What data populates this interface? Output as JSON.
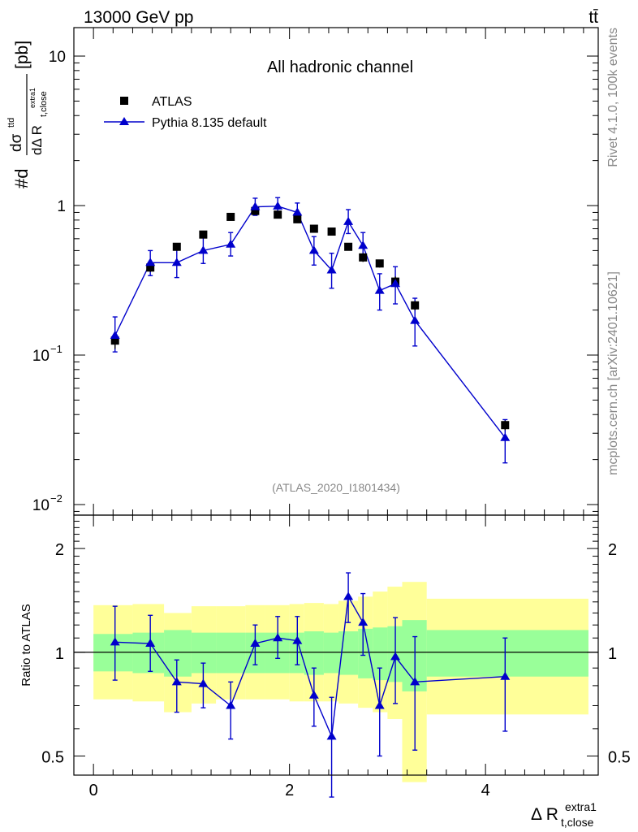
{
  "header": {
    "left": "13000 GeV pp",
    "right": "tt̄"
  },
  "side_labels": {
    "rivet": "Rivet 4.1.0,  100k events",
    "mcplots": "mcplots.cern.ch [arXiv:2401.10621]"
  },
  "colors": {
    "data": "#000000",
    "mc": "#0000cc",
    "band_inner": "#99ff99",
    "band_outer": "#ffff99"
  },
  "chart_data": [
    {
      "type": "scatter",
      "title": "All hadronic channel",
      "analysis_tag": "(ATLAS_2020_I1801434)",
      "ylabel": {
        "prefix": "#d",
        "numerator": "dσ",
        "numerator_sup": "ttd",
        "denominator": "dΔ R",
        "denominator_sub": "t,close",
        "denominator_sup": "extra1",
        "unit": "[pb]"
      },
      "yscale": "log",
      "xlim": [
        -0.2,
        5.15
      ],
      "ylim": [
        0.0085,
        15.5
      ],
      "yticks": [
        {
          "value": 0.01,
          "base": "10",
          "exp": "−2"
        },
        {
          "value": 0.1,
          "base": "10",
          "exp": "−1"
        },
        {
          "value": 1,
          "label": "1"
        },
        {
          "value": 10,
          "label": "10"
        }
      ],
      "legend": {
        "position": "top-left",
        "entries": [
          {
            "label": "ATLAS",
            "marker": "square"
          },
          {
            "label": "Pythia 8.135 default",
            "marker": "triangle"
          }
        ]
      },
      "series": [
        {
          "name": "ATLAS",
          "x": [
            0.22,
            0.58,
            0.85,
            1.12,
            1.4,
            1.65,
            1.88,
            2.08,
            2.25,
            2.43,
            2.6,
            2.75,
            2.92,
            3.08,
            3.28,
            4.2
          ],
          "y": [
            0.125,
            0.385,
            0.53,
            0.64,
            0.84,
            0.92,
            0.87,
            0.81,
            0.7,
            0.67,
            0.53,
            0.45,
            0.41,
            0.31,
            0.215,
            0.034
          ],
          "yerr": [
            0.015,
            0.025,
            0.022,
            0.025,
            0.03,
            0.04,
            0.035,
            0.035,
            0.03,
            0.03,
            0.025,
            0.03,
            0.025,
            0.025,
            0.015,
            0.0025
          ]
        },
        {
          "name": "Pythia 8.135 default",
          "x": [
            0.22,
            0.58,
            0.85,
            1.12,
            1.4,
            1.65,
            1.88,
            2.08,
            2.25,
            2.43,
            2.6,
            2.75,
            2.92,
            3.08,
            3.28,
            4.2
          ],
          "y": [
            0.135,
            0.415,
            0.415,
            0.5,
            0.55,
            0.98,
            0.99,
            0.9,
            0.5,
            0.37,
            0.78,
            0.54,
            0.27,
            0.3,
            0.17,
            0.028
          ],
          "ylo": [
            0.105,
            0.34,
            0.33,
            0.41,
            0.46,
            0.86,
            0.87,
            0.78,
            0.4,
            0.28,
            0.65,
            0.44,
            0.2,
            0.22,
            0.115,
            0.019
          ],
          "yhi": [
            0.18,
            0.5,
            0.52,
            0.61,
            0.66,
            1.12,
            1.13,
            1.04,
            0.62,
            0.48,
            0.94,
            0.66,
            0.35,
            0.39,
            0.24,
            0.037
          ]
        }
      ]
    },
    {
      "type": "scatter",
      "ylabel": "Ratio to ATLAS",
      "xlabel": {
        "main": "Δ R",
        "sub": "t,close",
        "sup": "extra1"
      },
      "yscale": "log",
      "xlim": [
        -0.2,
        5.15
      ],
      "ylim": [
        0.44,
        2.5
      ],
      "xticks": [
        0,
        2,
        4
      ],
      "yticks": [
        {
          "value": 0.5,
          "label": "0.5"
        },
        {
          "value": 1,
          "label": "1"
        },
        {
          "value": 2,
          "label": "2"
        }
      ],
      "bands": {
        "edges": [
          0.0,
          0.4,
          0.72,
          1.0,
          1.25,
          1.55,
          1.75,
          2.0,
          2.15,
          2.35,
          2.5,
          2.7,
          2.85,
          3.0,
          3.15,
          3.4,
          5.05
        ],
        "inner_lo": [
          0.88,
          0.87,
          0.85,
          0.87,
          0.87,
          0.87,
          0.87,
          0.87,
          0.86,
          0.87,
          0.86,
          0.84,
          0.83,
          0.82,
          0.77,
          0.85
        ],
        "inner_hi": [
          1.13,
          1.14,
          1.16,
          1.14,
          1.14,
          1.14,
          1.14,
          1.14,
          1.15,
          1.14,
          1.15,
          1.17,
          1.18,
          1.19,
          1.24,
          1.16
        ],
        "outer_lo": [
          0.73,
          0.72,
          0.67,
          0.71,
          0.73,
          0.73,
          0.73,
          0.72,
          0.72,
          0.72,
          0.71,
          0.69,
          0.67,
          0.64,
          0.42,
          0.66
        ],
        "outer_hi": [
          1.37,
          1.38,
          1.3,
          1.36,
          1.36,
          1.37,
          1.37,
          1.38,
          1.39,
          1.38,
          1.41,
          1.45,
          1.5,
          1.55,
          1.6,
          1.43
        ]
      },
      "series": [
        {
          "name": "Pythia 8.135 default / ATLAS",
          "x": [
            0.22,
            0.58,
            0.85,
            1.12,
            1.4,
            1.65,
            1.88,
            2.08,
            2.25,
            2.43,
            2.6,
            2.75,
            2.92,
            3.08,
            3.28,
            4.2
          ],
          "y": [
            1.07,
            1.06,
            0.82,
            0.81,
            0.7,
            1.06,
            1.1,
            1.08,
            0.75,
            0.57,
            1.45,
            1.22,
            0.7,
            0.97,
            0.82,
            0.85
          ],
          "ylo": [
            0.83,
            0.88,
            0.67,
            0.69,
            0.56,
            0.92,
            0.96,
            0.92,
            0.61,
            0.38,
            1.22,
            0.98,
            0.5,
            0.71,
            0.52,
            0.59
          ],
          "yhi": [
            1.36,
            1.28,
            0.95,
            0.93,
            0.82,
            1.2,
            1.27,
            1.27,
            0.9,
            0.74,
            1.7,
            1.48,
            0.9,
            1.26,
            1.11,
            1.1
          ]
        }
      ]
    }
  ]
}
